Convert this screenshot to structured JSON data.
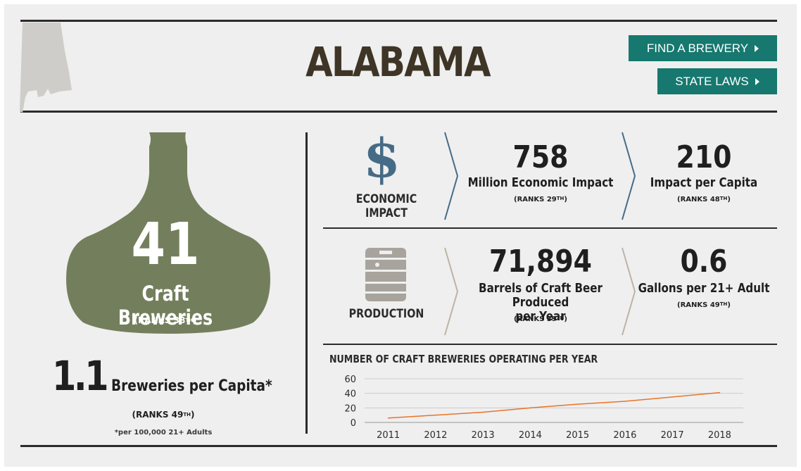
{
  "header": {
    "state_name": "ALABAMA",
    "find_brewery_label": "FIND A BREWERY",
    "state_laws_label": "STATE LAWS"
  },
  "breweries": {
    "count": "41",
    "label": "Craft Breweries",
    "rank_prefix": "(RANKS 38",
    "rank_suffix": "TH",
    "rank_close": ")"
  },
  "per_capita": {
    "value": "1.1",
    "label": "Breweries per Capita*",
    "rank_prefix": "(RANKS 49",
    "rank_suffix": "TH",
    "rank_close": ")",
    "note": "*per 100,000 21+ Adults"
  },
  "economic_impact": {
    "label": "ECONOMIC IMPACT",
    "icon": "dollar-icon",
    "stat1": {
      "value": "758",
      "label": "Million Economic Impact",
      "rank_prefix": "(RANKS 29",
      "rank_suffix": "TH",
      "rank_close": ")"
    },
    "stat2": {
      "value": "210",
      "label": "Impact per Capita",
      "rank_prefix": "(RANKS 48",
      "rank_suffix": "TH",
      "rank_close": ")"
    }
  },
  "production": {
    "label": "PRODUCTION",
    "icon": "keg-icon",
    "stat1": {
      "value": "71,894",
      "label_line1": "Barrels of Craft Beer Produced",
      "label_line2": "per Year",
      "rank_prefix": "(RANKS 39",
      "rank_suffix": "TH",
      "rank_close": ")"
    },
    "stat2": {
      "value": "0.6",
      "label": "Gallons per 21+ Adult",
      "rank_prefix": "(RANKS 49",
      "rank_suffix": "TH",
      "rank_close": ")"
    }
  },
  "colors": {
    "teal_button": "#16786f",
    "bottle_green": "#737f5c",
    "dollar_blue": "#466b86",
    "line_orange": "#e8742a"
  },
  "chart_data": {
    "type": "line",
    "title": "NUMBER OF CRAFT BREWERIES OPERATING PER YEAR",
    "x": [
      "2011",
      "2012",
      "2013",
      "2014",
      "2015",
      "2016",
      "2017",
      "2018"
    ],
    "series": [
      {
        "values": [
          6,
          10,
          14,
          20,
          25,
          29,
          35,
          41
        ]
      }
    ],
    "ylim": [
      0,
      60
    ],
    "yticks": [
      "0",
      "20",
      "40",
      "60"
    ],
    "grid": true,
    "legend": "none",
    "xlabel": "",
    "ylabel": ""
  }
}
